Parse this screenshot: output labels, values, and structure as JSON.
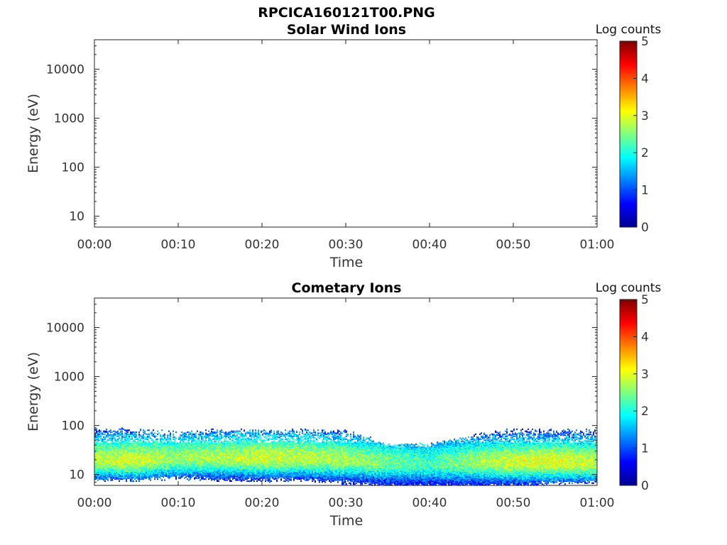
{
  "figure": {
    "title": "RPCICA160121T00.PNG"
  },
  "colormap": [
    "#00008f",
    "#0000ff",
    "#0080ff",
    "#00ffff",
    "#80ff80",
    "#ffff00",
    "#ff8000",
    "#ff0000",
    "#800000"
  ],
  "chart_data": [
    {
      "type": "heatmap",
      "title": "Solar Wind Ions",
      "xlabel": "Time",
      "ylabel": "Energy (eV)",
      "x_ticks": [
        "00:00",
        "00:10",
        "00:20",
        "00:30",
        "00:40",
        "00:50",
        "01:00"
      ],
      "x_range_minutes": [
        0,
        60
      ],
      "y_scale": "log",
      "y_ticks": [
        10,
        100,
        1000,
        10000
      ],
      "y_tick_labels": [
        "10",
        "100",
        "1000",
        "10000"
      ],
      "ylim": [
        6,
        40000
      ],
      "colorbar": {
        "label": "Log counts",
        "range": [
          0,
          5
        ],
        "ticks": [
          "0",
          "1",
          "2",
          "3",
          "4",
          "5"
        ]
      },
      "summary": "no counts displayed (empty spectrogram)",
      "profile": []
    },
    {
      "type": "heatmap",
      "title": "Cometary Ions",
      "xlabel": "Time",
      "ylabel": "Energy (eV)",
      "x_ticks": [
        "00:00",
        "00:10",
        "00:20",
        "00:30",
        "00:40",
        "00:50",
        "01:00"
      ],
      "x_range_minutes": [
        0,
        60
      ],
      "y_scale": "log",
      "y_ticks": [
        10,
        100,
        1000,
        10000
      ],
      "y_tick_labels": [
        "10",
        "100",
        "1000",
        "10000"
      ],
      "ylim": [
        6,
        40000
      ],
      "colorbar": {
        "label": "Log counts",
        "range": [
          0,
          5
        ],
        "ticks": [
          "0",
          "1",
          "2",
          "3",
          "4",
          "5"
        ]
      },
      "summary": "band of ion counts between roughly 6 eV and 80 eV, peak near 15-25 eV",
      "profile": [
        {
          "minute": 0,
          "e_min": 8,
          "e_peak": 20,
          "e_max": 80,
          "peak_log_counts": 2.8
        },
        {
          "minute": 5,
          "e_min": 8,
          "e_peak": 20,
          "e_max": 80,
          "peak_log_counts": 2.9
        },
        {
          "minute": 10,
          "e_min": 9,
          "e_peak": 22,
          "e_max": 70,
          "peak_log_counts": 2.6
        },
        {
          "minute": 15,
          "e_min": 8,
          "e_peak": 22,
          "e_max": 80,
          "peak_log_counts": 2.7
        },
        {
          "minute": 20,
          "e_min": 8,
          "e_peak": 22,
          "e_max": 80,
          "peak_log_counts": 2.9
        },
        {
          "minute": 25,
          "e_min": 8,
          "e_peak": 22,
          "e_max": 80,
          "peak_log_counts": 2.8
        },
        {
          "minute": 30,
          "e_min": 7,
          "e_peak": 20,
          "e_max": 75,
          "peak_log_counts": 2.7
        },
        {
          "minute": 35,
          "e_min": 6,
          "e_peak": 18,
          "e_max": 40,
          "peak_log_counts": 2.4
        },
        {
          "minute": 40,
          "e_min": 6,
          "e_peak": 17,
          "e_max": 40,
          "peak_log_counts": 2.2
        },
        {
          "minute": 45,
          "e_min": 6,
          "e_peak": 18,
          "e_max": 60,
          "peak_log_counts": 2.6
        },
        {
          "minute": 50,
          "e_min": 6,
          "e_peak": 18,
          "e_max": 80,
          "peak_log_counts": 2.9
        },
        {
          "minute": 55,
          "e_min": 7,
          "e_peak": 18,
          "e_max": 80,
          "peak_log_counts": 3.0
        },
        {
          "minute": 60,
          "e_min": 7,
          "e_peak": 18,
          "e_max": 80,
          "peak_log_counts": 2.8
        }
      ]
    }
  ]
}
